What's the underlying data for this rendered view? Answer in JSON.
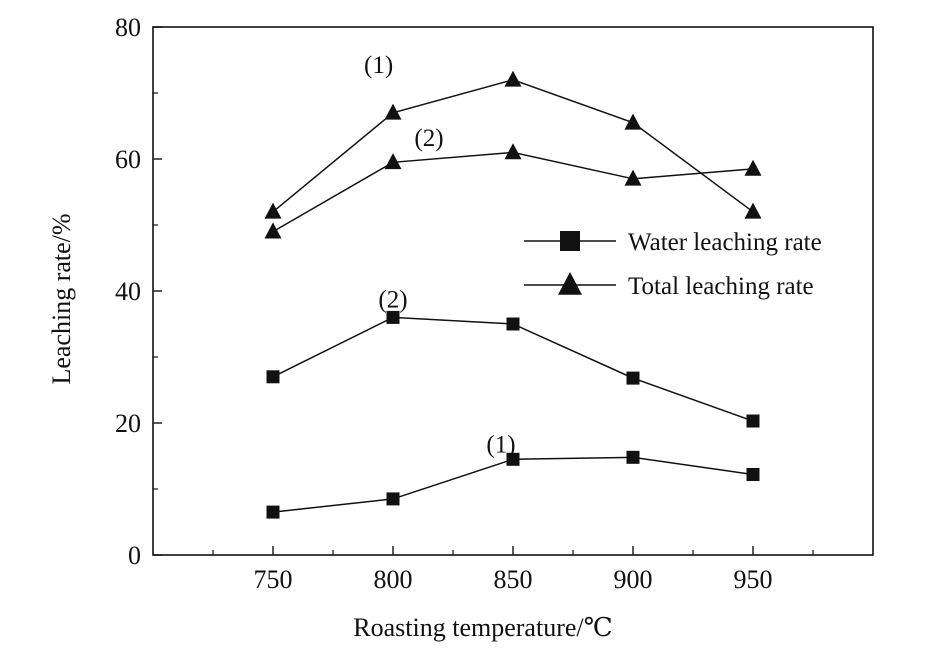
{
  "chart_data": {
    "type": "line",
    "xlabel": "Roasting temperature/℃",
    "ylabel": "Leaching rate/%",
    "xlim": [
      700,
      1000
    ],
    "ylim": [
      0,
      80
    ],
    "x_ticks": [
      750,
      800,
      850,
      900,
      950
    ],
    "y_ticks": [
      0,
      20,
      40,
      60,
      80
    ],
    "x_minor_ticks": [
      725,
      775,
      825,
      875,
      925,
      975
    ],
    "y_minor_ticks": [
      10,
      30,
      50,
      70
    ],
    "x": [
      750,
      800,
      850,
      900,
      950
    ],
    "series": [
      {
        "marker": "square",
        "label": "(1)",
        "values": [
          6.5,
          8.5,
          14.5,
          14.8,
          12.2
        ]
      },
      {
        "marker": "square",
        "label": "(2)",
        "values": [
          27.0,
          36.0,
          35.0,
          26.8,
          20.3
        ]
      },
      {
        "marker": "triangle",
        "label": "(1)",
        "values": [
          52.0,
          67.0,
          72.0,
          65.5,
          52.0
        ]
      },
      {
        "marker": "triangle",
        "label": "(2)",
        "values": [
          49.0,
          59.5,
          61.0,
          57.0,
          58.5
        ]
      }
    ],
    "legend": {
      "placement": "center-right",
      "entries": [
        {
          "marker": "square",
          "text": "Water leaching rate"
        },
        {
          "marker": "triangle",
          "text": "Total leaching rate"
        }
      ]
    },
    "annotations": [
      {
        "text": "(1)",
        "x": 845,
        "y": 15.5
      },
      {
        "text": "(2)",
        "x": 800,
        "y": 37.5
      },
      {
        "text": "(2)",
        "x": 815,
        "y": 62
      },
      {
        "text": "(1)",
        "x": 794,
        "y": 73
      }
    ],
    "grid": false,
    "colors": {
      "line": "#111111",
      "marker": "#111111"
    }
  }
}
